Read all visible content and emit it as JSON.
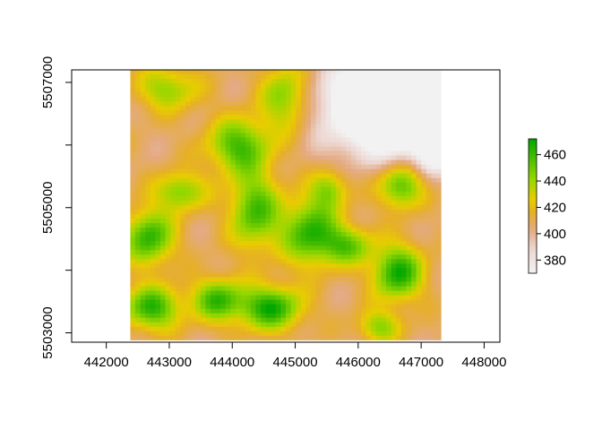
{
  "chart_data": {
    "type": "heatmap",
    "title": "",
    "xlabel": "",
    "ylabel": "",
    "xlim": [
      441450,
      448250
    ],
    "ylim": [
      5502850,
      5507200
    ],
    "raster_extent": {
      "xmin": 442380,
      "xmax": 447320,
      "ymin": 5502880,
      "ymax": 5507200
    },
    "x_ticks": [
      442000,
      443000,
      444000,
      445000,
      446000,
      447000,
      448000
    ],
    "x_tick_labels": [
      "442000",
      "443000",
      "444000",
      "445000",
      "446000",
      "447000",
      "448000"
    ],
    "y_ticks": [
      5503000,
      5504000,
      5505000,
      5506000,
      5507000
    ],
    "y_tick_labels": [
      "5503000",
      "",
      "5505000",
      "",
      "5507000"
    ],
    "value_range": [
      370,
      472
    ],
    "grid": false,
    "legend": {
      "placement": "right",
      "ticks": [
        380,
        400,
        420,
        440,
        460
      ],
      "tick_labels": [
        "380",
        "400",
        "420",
        "440",
        "460"
      ],
      "colors": [
        "#F2F2F2",
        "#ECB176",
        "#E6C300",
        "#8CD500",
        "#00A600"
      ]
    }
  }
}
